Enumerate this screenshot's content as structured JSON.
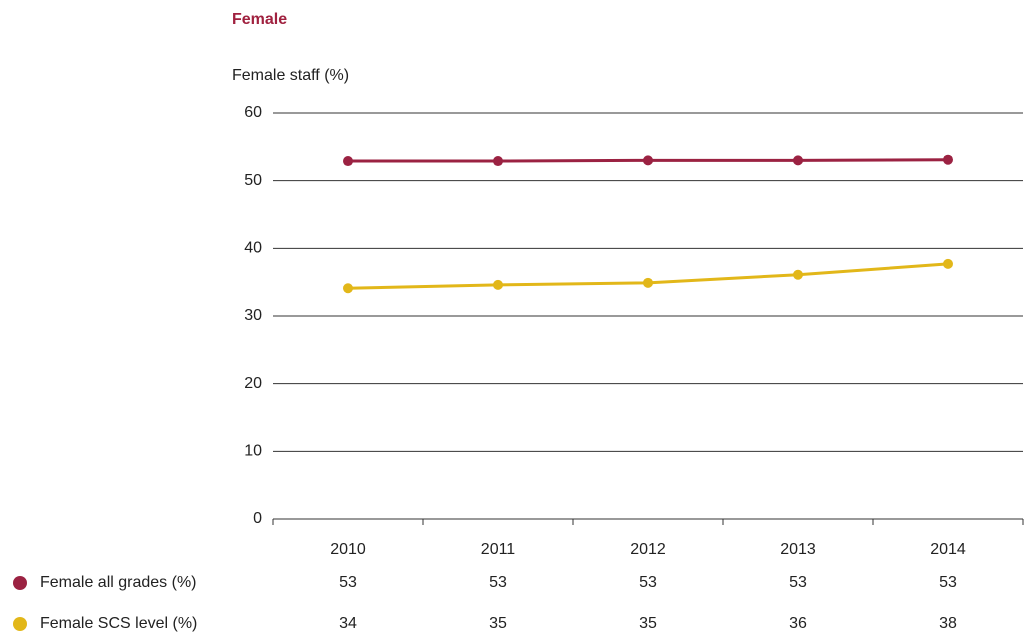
{
  "chart_data": {
    "type": "line",
    "title": "Female",
    "subtitle": "Female staff (%)",
    "categories": [
      "2010",
      "2011",
      "2012",
      "2013",
      "2014"
    ],
    "series": [
      {
        "name": "Female all grades (%)",
        "color": "#9b2242",
        "values": [
          52.9,
          52.9,
          53.0,
          53.0,
          53.1
        ],
        "value_labels": [
          "53",
          "53",
          "53",
          "53",
          "53"
        ]
      },
      {
        "name": "Female SCS level (%)",
        "color": "#e2b719",
        "values": [
          34.1,
          34.6,
          34.9,
          36.1,
          37.7
        ],
        "value_labels": [
          "34",
          "35",
          "35",
          "36",
          "38"
        ]
      }
    ],
    "ylim": [
      0,
      60
    ],
    "yticks": [
      0,
      10,
      20,
      30,
      40,
      50,
      60
    ],
    "grid": true
  }
}
